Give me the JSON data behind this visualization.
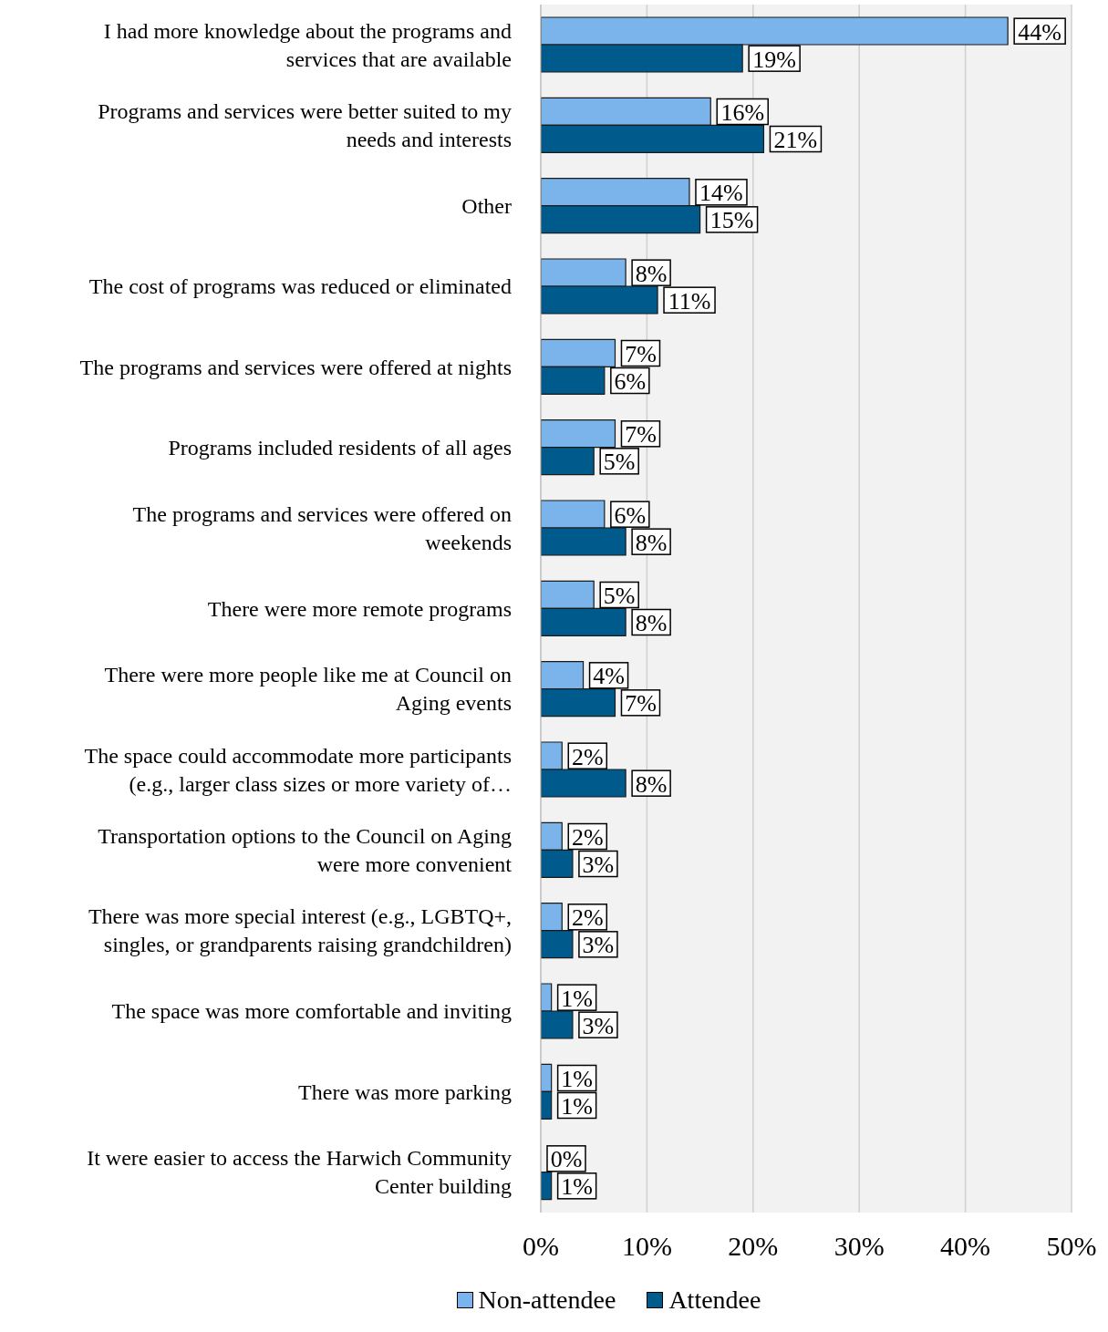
{
  "chart_data": {
    "type": "bar",
    "orientation": "horizontal",
    "categories": [
      "I had more knowledge about the programs and services that are available",
      "Programs and services were better suited to my needs and interests",
      "Other",
      "The cost of programs was reduced or eliminated",
      "The programs and services were offered at nights",
      "Programs included residents of all ages",
      "The programs and services were offered on weekends",
      "There were more remote programs",
      "There were more people like me at Council on Aging events",
      "The space could accommodate more participants (e.g., larger class sizes or more variety of…",
      "Transportation options to the Council on Aging were more convenient",
      "There was more special interest (e.g., LGBTQ+, singles, or grandparents raising grandchildren)",
      "The space was more comfortable and inviting",
      "There was more parking",
      "It were easier to access the Harwich Community Center building"
    ],
    "series": [
      {
        "name": "Non-attendee",
        "color": "#7ab4ea",
        "values": [
          44,
          16,
          14,
          8,
          7,
          7,
          6,
          5,
          4,
          2,
          2,
          2,
          1,
          1,
          0
        ],
        "value_labels": [
          "44%",
          "16%",
          "14%",
          "8%",
          "7%",
          "7%",
          "6%",
          "5%",
          "4%",
          "2%",
          "2%",
          "2%",
          "1%",
          "1%",
          "0%"
        ]
      },
      {
        "name": "Attendee",
        "color": "#005a8c",
        "values": [
          19,
          21,
          15,
          11,
          6,
          5,
          8,
          8,
          7,
          8,
          3,
          3,
          3,
          1,
          1
        ],
        "value_labels": [
          "19%",
          "21%",
          "15%",
          "11%",
          "6%",
          "5%",
          "8%",
          "8%",
          "7%",
          "8%",
          "3%",
          "3%",
          "3%",
          "1%",
          "1%"
        ]
      }
    ],
    "xlim": [
      0,
      50
    ],
    "xticks": [
      {
        "value": 0,
        "label": "0%"
      },
      {
        "value": 10,
        "label": "10%"
      },
      {
        "value": 20,
        "label": "20%"
      },
      {
        "value": 30,
        "label": "30%"
      },
      {
        "value": 40,
        "label": "40%"
      },
      {
        "value": 50,
        "label": "50%"
      }
    ],
    "grid": "x",
    "legend": "bottom"
  }
}
